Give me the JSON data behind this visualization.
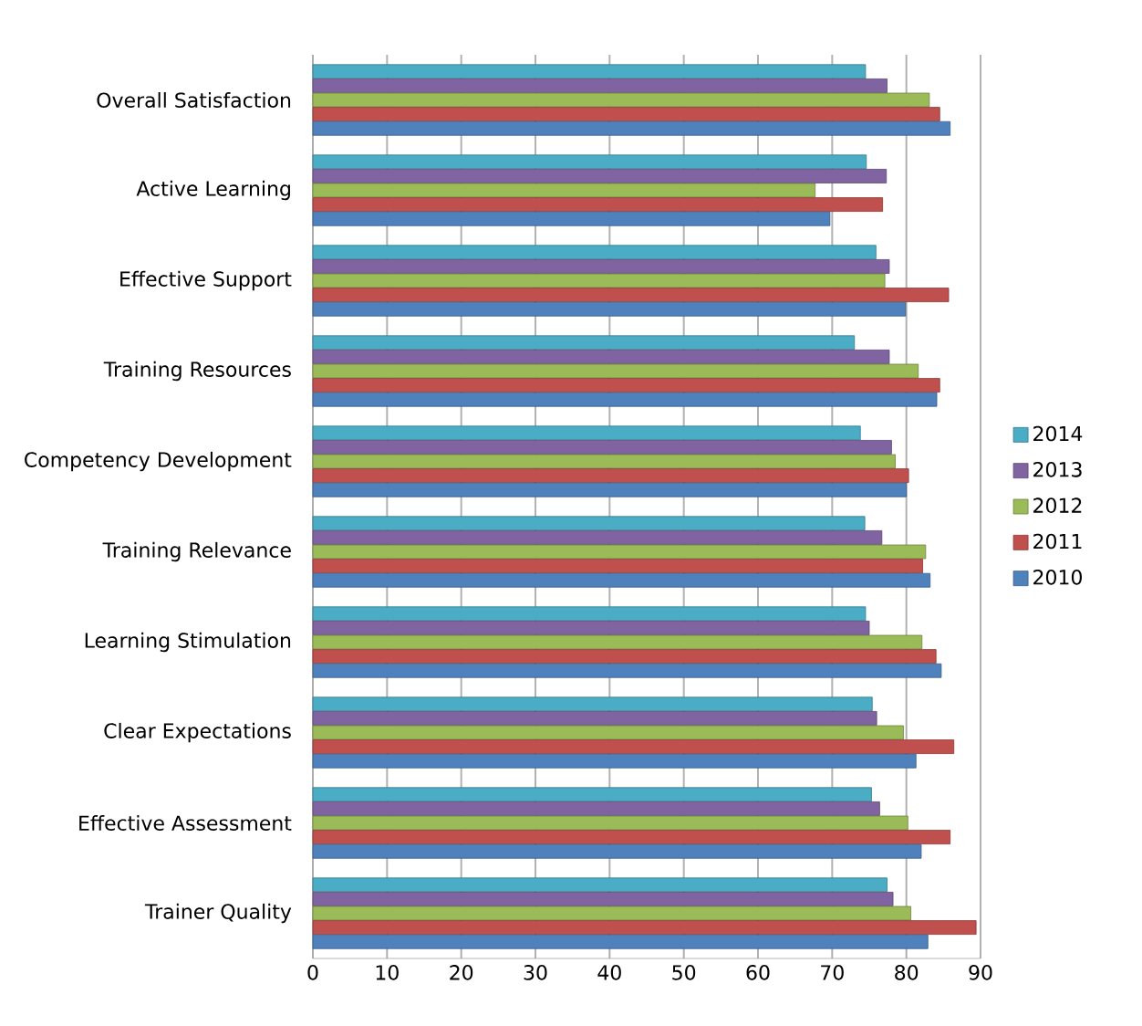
{
  "chart_data": {
    "type": "bar",
    "orientation": "horizontal",
    "categories": [
      "Overall Satisfaction",
      "Active Learning",
      "Effective Support",
      "Training Resources",
      "Competency Development",
      "Training Relevance",
      "Learning Stimulation",
      "Clear Expectations",
      "Effective Assessment",
      "Trainer Quality"
    ],
    "series": [
      {
        "name": "2014",
        "color": "#4bacc6",
        "values": [
          74.5,
          74.6,
          75.9,
          73.0,
          73.8,
          74.4,
          74.5,
          75.4,
          75.3,
          77.4
        ]
      },
      {
        "name": "2013",
        "color": "#8064a2",
        "values": [
          77.4,
          77.3,
          77.7,
          77.7,
          78.0,
          76.7,
          75.0,
          76.0,
          76.4,
          78.2
        ]
      },
      {
        "name": "2012",
        "color": "#9bbb59",
        "values": [
          83.1,
          67.7,
          77.1,
          81.6,
          78.5,
          82.6,
          82.1,
          79.6,
          80.2,
          80.6
        ]
      },
      {
        "name": "2011",
        "color": "#c0504d",
        "values": [
          84.5,
          76.8,
          85.7,
          84.5,
          80.3,
          82.2,
          84.0,
          86.4,
          85.9,
          89.4
        ]
      },
      {
        "name": "2010",
        "color": "#4f81bd",
        "values": [
          85.9,
          69.7,
          79.9,
          84.1,
          80.0,
          83.2,
          84.7,
          81.3,
          82.0,
          82.9
        ]
      }
    ],
    "xlim": [
      0,
      90
    ],
    "xticks": [
      0,
      10,
      20,
      30,
      40,
      50,
      60,
      70,
      80,
      90
    ],
    "grid": "x",
    "legend": "right"
  }
}
